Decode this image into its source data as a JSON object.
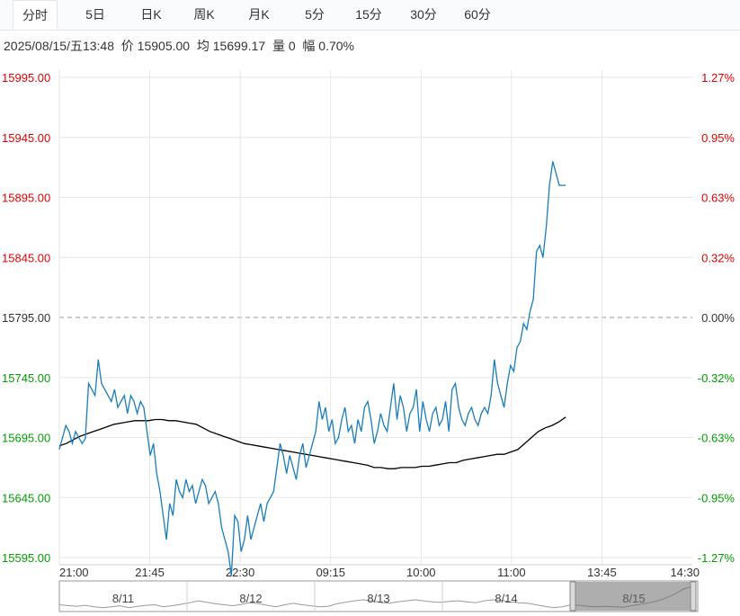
{
  "tabs": {
    "items": [
      "分时",
      "5日",
      "日K",
      "周K",
      "月K",
      "5分",
      "15分",
      "30分",
      "60分"
    ],
    "active_index": 0
  },
  "info": {
    "datetime": "2025/08/15/五13:48",
    "price_label": "价",
    "price": "15905.00",
    "avg_label": "均",
    "avg": "15699.17",
    "vol_label": "量",
    "vol": "0",
    "amp_label": "幅",
    "amp": "0.70%"
  },
  "colors": {
    "up": "#e60000",
    "down": "#00a000",
    "price_line": "#1a7dbd",
    "avg_line": "#000000",
    "grid": "#e6e6e6",
    "baseline": "#999999"
  },
  "chart_data": {
    "type": "line",
    "prev_close": 15795,
    "ylim": [
      15595,
      15995
    ],
    "y_ticks_left": [
      "15995.00",
      "15945.00",
      "15895.00",
      "15845.00",
      "15795.00",
      "15745.00",
      "15695.00",
      "15645.00",
      "15595.00"
    ],
    "y_ticks_right": [
      "1.27%",
      "0.95%",
      "0.63%",
      "0.32%",
      "0.00%",
      "-0.32%",
      "-0.63%",
      "-0.95%",
      "-1.27%"
    ],
    "x_ticks": [
      "21:00",
      "21:45",
      "22:30",
      "09:15",
      "10:00",
      "11:00",
      "13:45",
      "14:30"
    ],
    "session_fraction_elapsed": 0.8,
    "series": [
      {
        "key": "price",
        "values": [
          15685,
          15695,
          15705,
          15700,
          15690,
          15700,
          15695,
          15690,
          15694,
          15740,
          15735,
          15730,
          15760,
          15740,
          15735,
          15730,
          15725,
          15735,
          15720,
          15725,
          15730,
          15715,
          15730,
          15725,
          15715,
          15725,
          15720,
          15700,
          15680,
          15690,
          15665,
          15650,
          15630,
          15610,
          15640,
          15630,
          15660,
          15650,
          15645,
          15660,
          15650,
          15655,
          15640,
          15650,
          15660,
          15655,
          15640,
          15645,
          15650,
          15640,
          15620,
          15610,
          15600,
          15580,
          15630,
          15625,
          15600,
          15610,
          15630,
          15610,
          15620,
          15630,
          15640,
          15625,
          15640,
          15645,
          15650,
          15670,
          15690,
          15680,
          15665,
          15680,
          15670,
          15660,
          15680,
          15690,
          15670,
          15680,
          15690,
          15700,
          15725,
          15710,
          15720,
          15700,
          15710,
          15690,
          15695,
          15710,
          15720,
          15700,
          15705,
          15690,
          15710,
          15700,
          15720,
          15725,
          15710,
          15690,
          15700,
          15715,
          15705,
          15700,
          15720,
          15740,
          15710,
          15730,
          15720,
          15700,
          15715,
          15720,
          15735,
          15700,
          15725,
          15710,
          15700,
          15715,
          15720,
          15705,
          15710,
          15725,
          15700,
          15735,
          15740,
          15720,
          15710,
          15705,
          15715,
          15720,
          15710,
          15705,
          15715,
          15720,
          15715,
          15730,
          15760,
          15740,
          15730,
          15720,
          15740,
          15755,
          15750,
          15770,
          15775,
          15790,
          15785,
          15800,
          15810,
          15850,
          15855,
          15845,
          15870,
          15905,
          15925,
          15915,
          15905,
          15905,
          15905
        ],
        "avg_values": [
          15688,
          15690,
          15693,
          15696,
          15698,
          15700,
          15702,
          15704,
          15706,
          15707,
          15708,
          15709,
          15709,
          15709,
          15710,
          15710,
          15709,
          15709,
          15708,
          15707,
          15706,
          15703,
          15700,
          15698,
          15696,
          15694,
          15692,
          15690,
          15689,
          15688,
          15687,
          15686,
          15685,
          15684,
          15683,
          15682,
          15681,
          15680,
          15679,
          15678,
          15677,
          15676,
          15675,
          15674,
          15673,
          15672,
          15670,
          15670,
          15669,
          15669,
          15670,
          15670,
          15670,
          15671,
          15671,
          15672,
          15673,
          15674,
          15674,
          15676,
          15677,
          15678,
          15679,
          15680,
          15681,
          15681,
          15683,
          15685,
          15690,
          15695,
          15700,
          15703,
          15705,
          15708,
          15712
        ]
      }
    ],
    "navigator": {
      "labels": [
        "8/11",
        "8/12",
        "8/13",
        "8/14",
        "8/15"
      ],
      "values": [
        15720,
        15712,
        15705,
        15715,
        15700,
        15690,
        15700,
        15710,
        15690,
        15705,
        15715,
        15720,
        15700,
        15710,
        15725,
        15740,
        15760,
        15745,
        15730,
        15720,
        15710,
        15725,
        15740,
        15730,
        15715,
        15700,
        15720,
        15735,
        15720,
        15710,
        15700,
        15705,
        15730,
        15745,
        15760,
        15770,
        15760,
        15745,
        15735,
        15750,
        15760,
        15770,
        15760,
        15750,
        15745,
        15755,
        15760,
        15750,
        15740,
        15760,
        15770,
        15765,
        15750,
        15740,
        15735,
        15720,
        15705,
        15690,
        15700,
        15720,
        15715,
        15705,
        15700,
        15705,
        15700,
        15695,
        15710,
        15725,
        15740,
        15760,
        15790,
        15830,
        15880,
        15905
      ]
    }
  }
}
